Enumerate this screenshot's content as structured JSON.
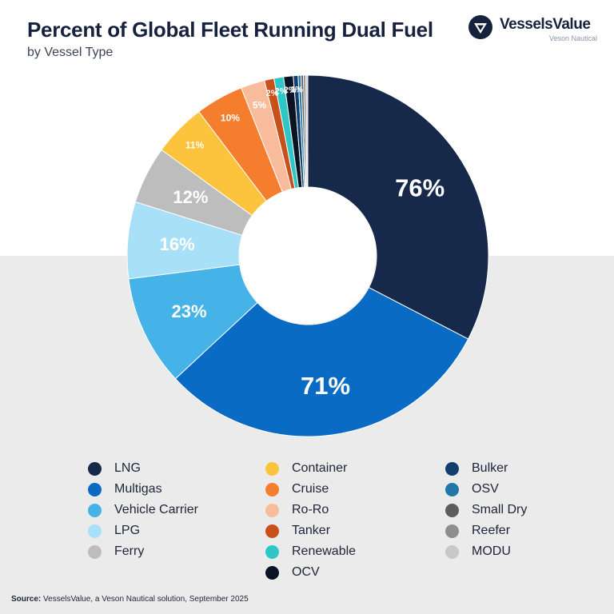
{
  "header": {
    "title": "Percent of Global Fleet Running Dual Fuel",
    "subtitle": "by Vessel Type"
  },
  "logo": {
    "name": "VesselsValue",
    "tagline": "Veson Nautical"
  },
  "source": {
    "label": "Source:",
    "text": " VesselsValue, a Veson Nautical solution, September 2025"
  },
  "chart_data": {
    "type": "pie",
    "style": "donut",
    "title": "Percent of Global Fleet Running Dual Fuel",
    "subtitle": "by Vessel Type",
    "legend_position": "bottom",
    "note": "Slices share the circle equally by relative value of the listed percentages",
    "series": [
      {
        "name": "LNG",
        "value": 76,
        "label": "76%",
        "color": "#17294a"
      },
      {
        "name": "Multigas",
        "value": 71,
        "label": "71%",
        "color": "#0a6bc5"
      },
      {
        "name": "Vehicle Carrier",
        "value": 23,
        "label": "23%",
        "color": "#45b3e8"
      },
      {
        "name": "LPG",
        "value": 16,
        "label": "16%",
        "color": "#a8e0f7"
      },
      {
        "name": "Ferry",
        "value": 12,
        "label": "12%",
        "color": "#bdbdbd"
      },
      {
        "name": "Container",
        "value": 11,
        "label": "11%",
        "color": "#fbc43c"
      },
      {
        "name": "Cruise",
        "value": 10,
        "label": "10%",
        "color": "#f47e2e"
      },
      {
        "name": "Ro-Ro",
        "value": 5,
        "label": "5%",
        "color": "#f8bc9c"
      },
      {
        "name": "Tanker",
        "value": 2,
        "label": "2%",
        "color": "#c8501a"
      },
      {
        "name": "Renewable",
        "value": 2,
        "label": "2%",
        "color": "#2fc6c6"
      },
      {
        "name": "OCV",
        "value": 2,
        "label": "2%",
        "color": "#0b1424"
      },
      {
        "name": "Bulker",
        "value": 1,
        "label": "1%",
        "color": "#123f6e"
      },
      {
        "name": "OSV",
        "value": 0.6,
        "label": "<1%",
        "color": "#1f78a8"
      },
      {
        "name": "Small Dry",
        "value": 0.5,
        "label": "",
        "color": "#5d5d5d"
      },
      {
        "name": "Reefer",
        "value": 0.5,
        "label": "",
        "color": "#8e8e8e"
      },
      {
        "name": "MODU",
        "value": 0.4,
        "label": "",
        "color": "#c8c8c8"
      }
    ],
    "legend_columns": [
      [
        "LNG",
        "Multigas",
        "Vehicle Carrier",
        "LPG",
        "Ferry"
      ],
      [
        "Container",
        "Cruise",
        "Ro-Ro",
        "Tanker",
        "Renewable",
        "OCV"
      ],
      [
        "Bulker",
        "OSV",
        "Small Dry",
        "Reefer",
        "MODU"
      ]
    ]
  }
}
